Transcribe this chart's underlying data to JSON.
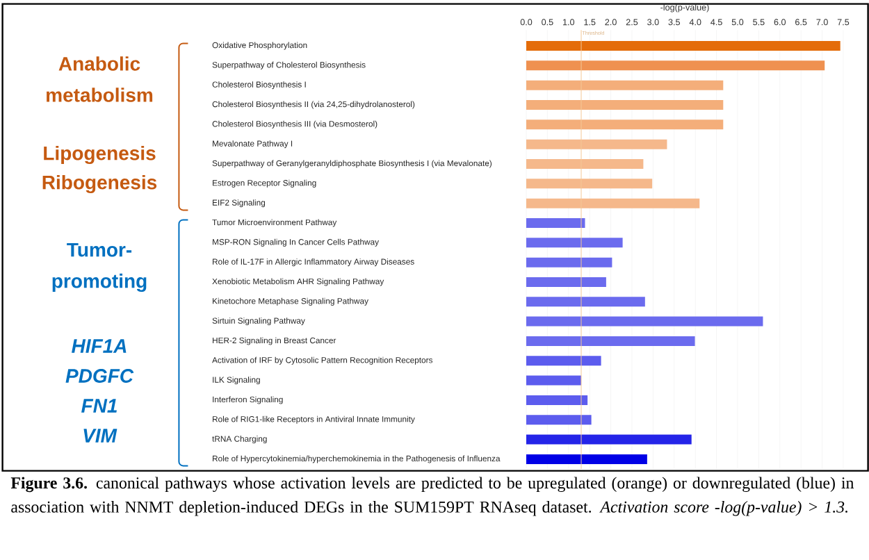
{
  "chart_data": {
    "type": "bar",
    "orientation": "horizontal",
    "xlabel": "-log(p-value)",
    "categories": [
      "Oxidative Phosphorylation",
      "Superpathway of Cholesterol Biosynthesis",
      "Cholesterol Biosynthesis I",
      "Cholesterol Biosynthesis II (via 24,25-dihydrolanosterol)",
      "Cholesterol Biosynthesis III (via Desmosterol)",
      "Mevalonate Pathway I",
      "Superpathway of Geranylgeranyldiphosphate Biosynthesis I (via Mevalonate)",
      "Estrogen Receptor Signaling",
      "EIF2 Signaling",
      "Tumor Microenvironment Pathway",
      "MSP-RON Signaling In Cancer Cells Pathway",
      "Role of IL-17F in Allergic Inflammatory Airway Diseases",
      "Xenobiotic Metabolism AHR Signaling Pathway",
      "Kinetochore Metaphase Signaling Pathway",
      "Sirtuin Signaling Pathway",
      "HER-2 Signaling in Breast Cancer",
      "Activation of IRF by Cytosolic Pattern Recognition Receptors",
      "ILK Signaling",
      "Interferon Signaling",
      "Role of RIG1-like Receptors in Antiviral Innate Immunity",
      "tRNA Charging",
      "Role of Hypercytokinemia/hyperchemokinemia in the Pathogenesis of Influenza"
    ],
    "values": [
      7.43,
      7.06,
      4.66,
      4.66,
      4.66,
      3.33,
      2.77,
      2.98,
      4.1,
      1.39,
      2.28,
      2.03,
      1.89,
      2.81,
      5.6,
      3.99,
      1.77,
      1.3,
      1.45,
      1.54,
      3.91,
      2.86
    ],
    "colors": [
      "#e46c0a",
      "#ef9150",
      "#f4ae7a",
      "#f4ae7a",
      "#f4ae7a",
      "#f5b88b",
      "#f5b88b",
      "#f5b88b",
      "#f5b88b",
      "#6b6bee",
      "#6b6bee",
      "#6b6bee",
      "#6b6bee",
      "#6b6bee",
      "#6b6bee",
      "#6b6bee",
      "#5c5cee",
      "#5c5cee",
      "#5c5cee",
      "#5c5cee",
      "#2424e8",
      "#0000e6"
    ],
    "xlim": [
      0,
      7.5
    ],
    "xticks": [
      {
        "value": 0,
        "label": "0.0"
      },
      0.5,
      {
        "value": 1,
        "label": "1.0"
      },
      1.5,
      {
        "value": 2,
        "label": "2.0"
      },
      2.5,
      {
        "value": 3,
        "label": "3.0"
      },
      3.5,
      {
        "value": 4,
        "label": "4.0"
      },
      4.5,
      {
        "value": 5,
        "label": "5.0"
      },
      5.5,
      {
        "value": 6,
        "label": "6.0"
      },
      6.5,
      {
        "value": 7,
        "label": "7.0"
      },
      7.5
    ],
    "grid": "x",
    "ref_lines": [
      {
        "axis": "x",
        "value": 1.3,
        "label": "Threshold",
        "color": "#f4c896"
      }
    ],
    "annotations": [
      "Anabolic metabolism",
      "Lipogenesis",
      "Ribogenesis",
      "Tumor-promoting",
      "HIF1A",
      "PDGFC",
      "FN1",
      "VIM",
      "**Figure 3.6.** canonical pathways whose activation levels are predicted to be upregulated (orange) or downregulated (blue) in association with NNMT depletion-induced DEGs in the SUM159PT RNAseq dataset. *Activation score -log(p-value) > 1.3.*"
    ]
  }
}
